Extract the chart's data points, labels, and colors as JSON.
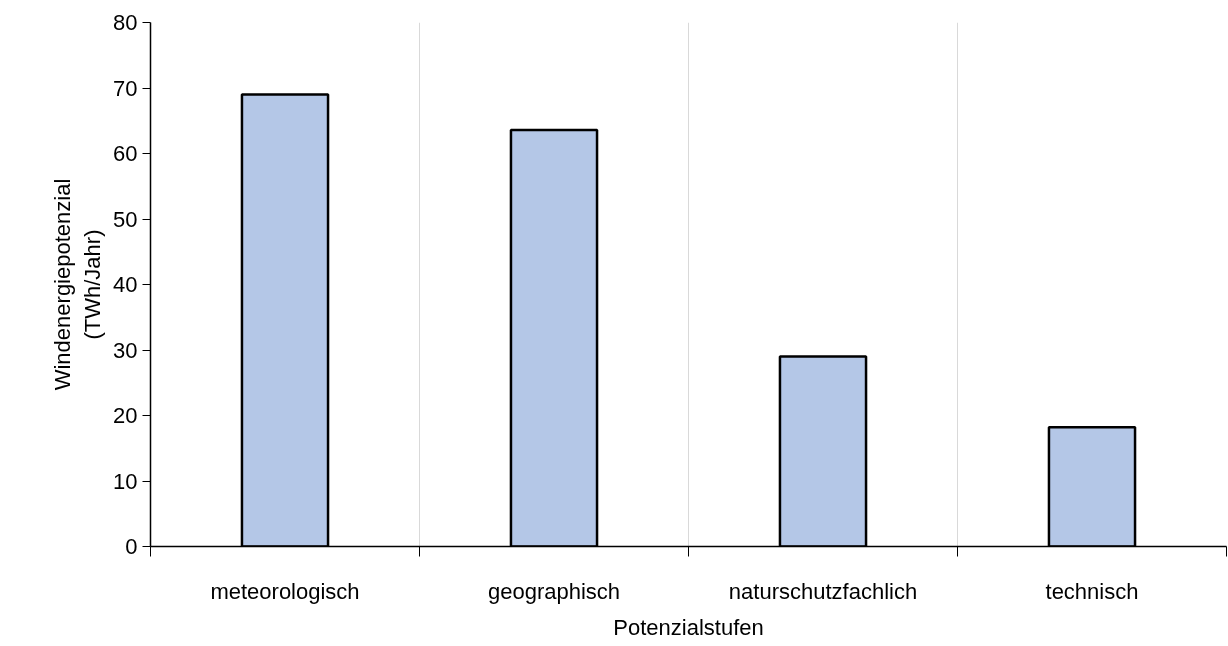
{
  "chart_data": {
    "type": "bar",
    "xlabel": "Potenzialstufen",
    "ylabel": "Windenergiepotenzial\n(TWh/Jahr)",
    "categories": [
      "meteorologisch",
      "geographisch",
      "naturschutzfachlich",
      "technisch"
    ],
    "values": [
      69,
      63.6,
      29,
      18.2
    ],
    "color": "#b4c7e7",
    "ylim": [
      0,
      80
    ],
    "yticks": [
      0,
      10,
      20,
      30,
      40,
      50,
      60,
      70,
      80
    ],
    "grid": "x"
  }
}
